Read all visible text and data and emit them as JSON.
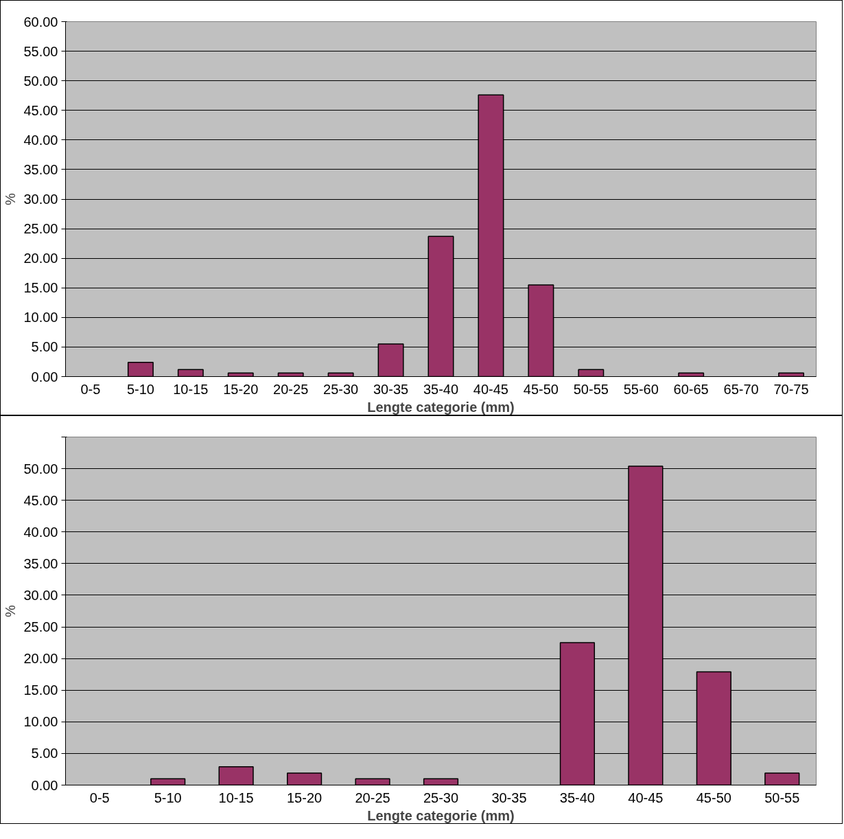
{
  "chart_data": [
    {
      "type": "bar",
      "xlabel": "Lengte categorie (mm)",
      "ylabel": "%",
      "categories": [
        "0-5",
        "5-10",
        "10-15",
        "15-20",
        "20-25",
        "25-30",
        "30-35",
        "35-40",
        "40-45",
        "45-50",
        "50-55",
        "55-60",
        "60-65",
        "65-70",
        "70-75"
      ],
      "values": [
        0,
        2.4,
        1.2,
        0.6,
        0.6,
        0.6,
        5.5,
        23.7,
        47.6,
        15.5,
        1.2,
        0,
        0.6,
        0,
        0.6
      ],
      "color": "#993366",
      "ylim": [
        0,
        60
      ],
      "yticks": [
        {
          "value": 0,
          "label": "0.00"
        },
        {
          "value": 5,
          "label": "5.00"
        },
        {
          "value": 10,
          "label": "10.00"
        },
        {
          "value": 15,
          "label": "15.00"
        },
        {
          "value": 20,
          "label": "20.00"
        },
        {
          "value": 25,
          "label": "25.00"
        },
        {
          "value": 30,
          "label": "30.00"
        },
        {
          "value": 35,
          "label": "35.00"
        },
        {
          "value": 40,
          "label": "40.00"
        },
        {
          "value": 45,
          "label": "45.00"
        },
        {
          "value": 50,
          "label": "50.00"
        },
        {
          "value": 55,
          "label": "55.00"
        },
        {
          "value": 60,
          "label": "60.00"
        }
      ],
      "grid": "y"
    },
    {
      "type": "bar",
      "xlabel": "Lengte categorie (mm)",
      "ylabel": "%",
      "categories": [
        "0-5",
        "5-10",
        "10-15",
        "15-20",
        "20-25",
        "25-30",
        "30-35",
        "35-40",
        "40-45",
        "45-50",
        "50-55"
      ],
      "values": [
        0,
        1.0,
        2.9,
        1.9,
        1.0,
        1.0,
        0,
        22.5,
        50.4,
        17.9,
        1.9
      ],
      "color": "#993366",
      "ylim": [
        0,
        55
      ],
      "yticks": [
        {
          "value": 0,
          "label": "0.00"
        },
        {
          "value": 5,
          "label": "5.00"
        },
        {
          "value": 10,
          "label": "10.00"
        },
        {
          "value": 15,
          "label": "15.00"
        },
        {
          "value": 20,
          "label": "20.00"
        },
        {
          "value": 25,
          "label": "25.00"
        },
        {
          "value": 30,
          "label": "30.00"
        },
        {
          "value": 35,
          "label": "35.00"
        },
        {
          "value": 40,
          "label": "40.00"
        },
        {
          "value": 45,
          "label": "45.00"
        },
        {
          "value": 50,
          "label": "50.00"
        },
        {
          "value": 55,
          "label": null
        }
      ],
      "grid": "y"
    }
  ]
}
